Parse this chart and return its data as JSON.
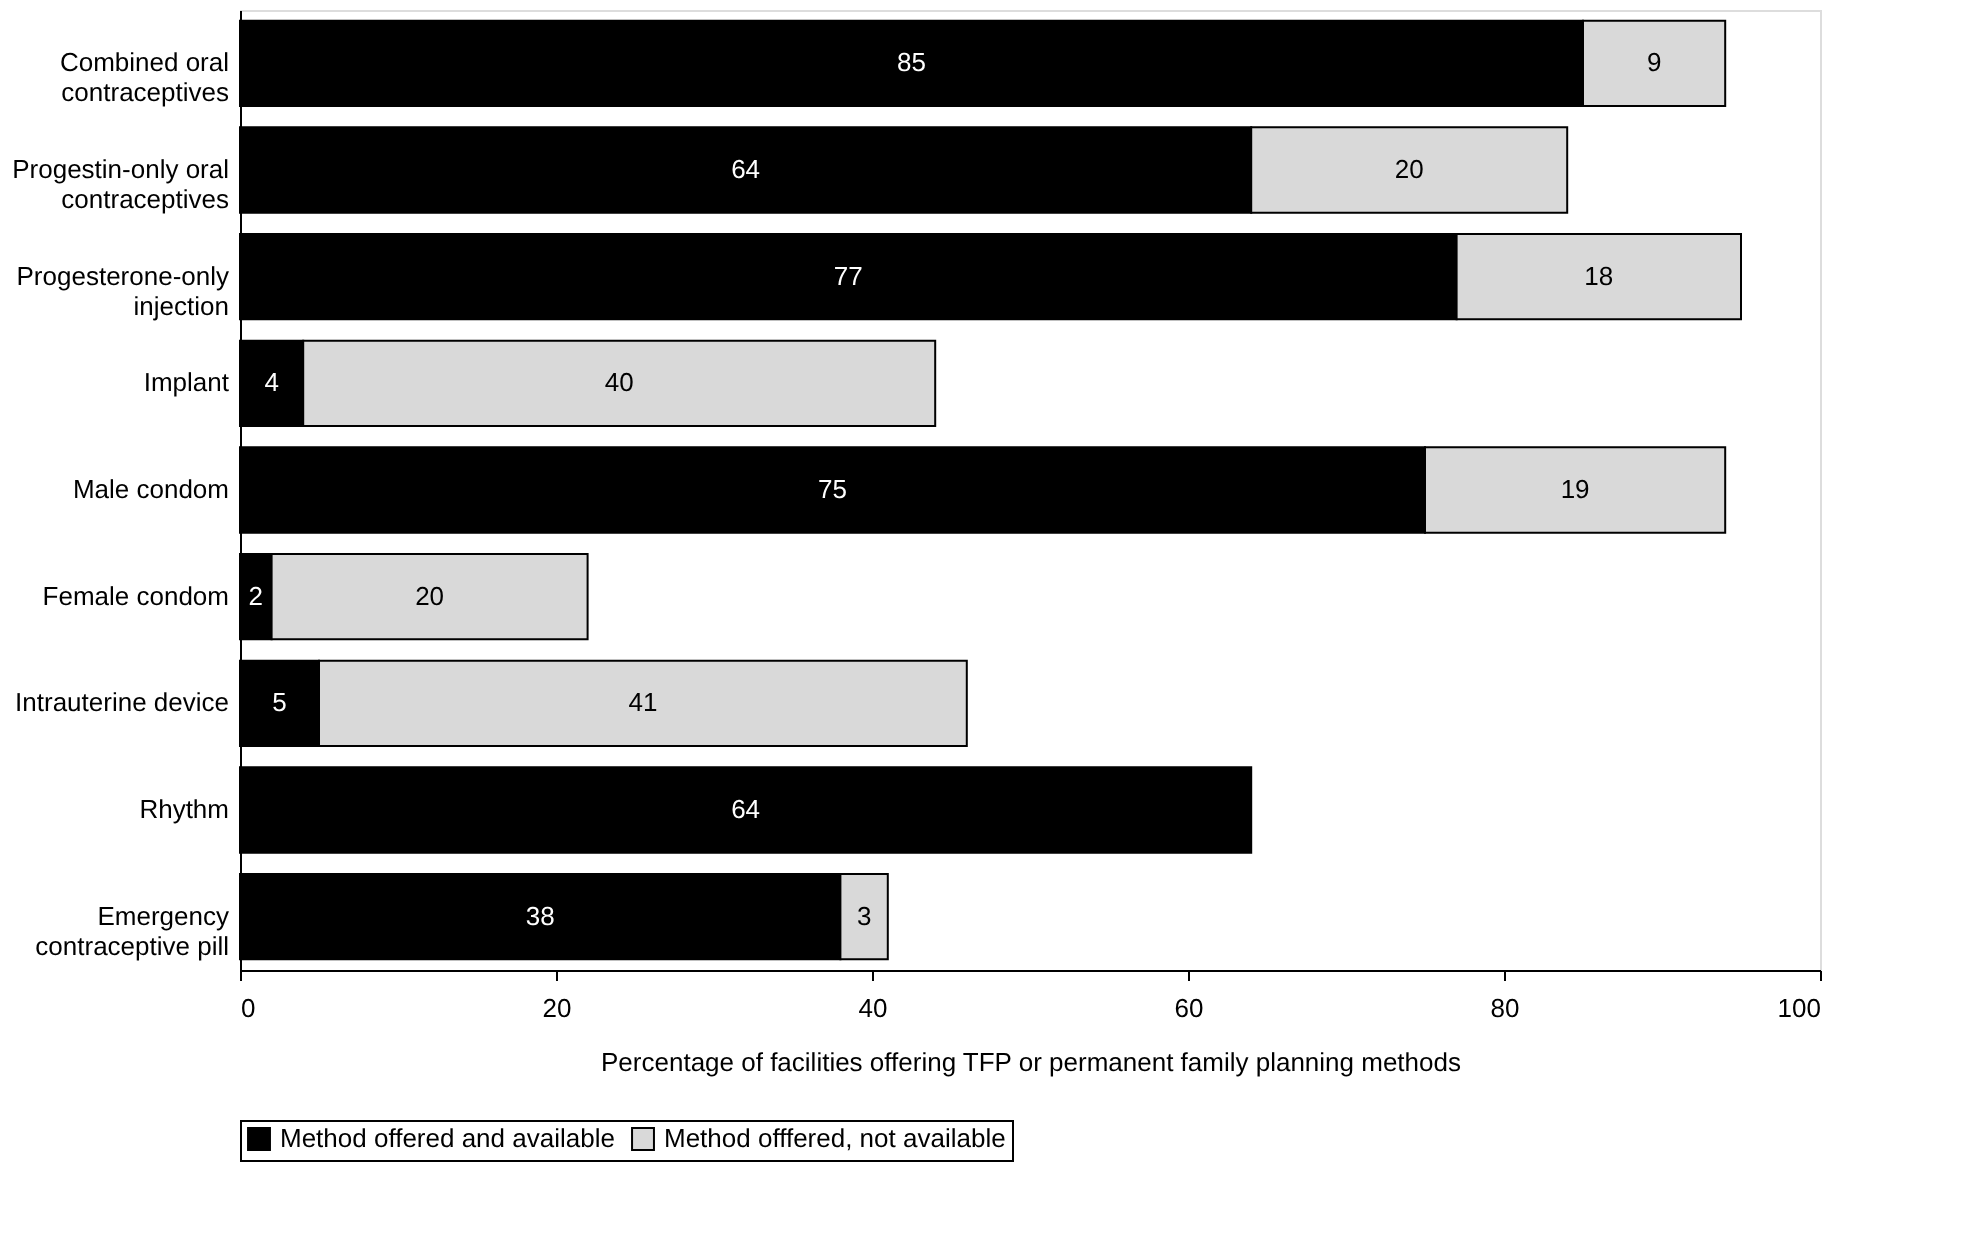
{
  "chart_data": {
    "type": "bar",
    "orientation": "horizontal",
    "stacked": true,
    "xlabel": "Percentage of facilities offering TFP or permanent family planning methods",
    "categories": [
      "Combined oral contraceptives",
      "Progestin-only oral contraceptives",
      "Progesterone-only injection",
      "Implant",
      "Male condom",
      "Female condom",
      "Intrauterine device",
      "Rhythm",
      "Emergency contraceptive pill"
    ],
    "series": [
      {
        "name": "Method offered and available",
        "color": "#000000",
        "values": [
          85,
          64,
          77,
          4,
          75,
          2,
          5,
          64,
          38
        ]
      },
      {
        "name": "Method offfered, not available",
        "color": "#d9d9d9",
        "values": [
          9,
          20,
          18,
          40,
          19,
          20,
          41,
          null,
          3
        ]
      }
    ],
    "xlim": [
      0,
      100
    ],
    "xticks": [
      0,
      20,
      40,
      60,
      80,
      100
    ],
    "grid": false,
    "legend": "bottom",
    "data_labels": true
  }
}
